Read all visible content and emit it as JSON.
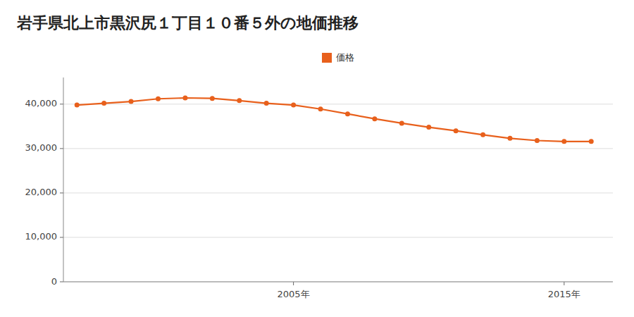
{
  "chart_data": {
    "type": "line",
    "title": "岩手県北上市黒沢尻１丁目１０番５外の地価推移",
    "x": [
      1997,
      1998,
      1999,
      2000,
      2001,
      2002,
      2003,
      2004,
      2005,
      2006,
      2007,
      2008,
      2009,
      2010,
      2011,
      2012,
      2013,
      2014,
      2015,
      2016
    ],
    "series": [
      {
        "name": "価格",
        "color": "#e8601c",
        "marker": "circle",
        "values": [
          39800,
          40200,
          40600,
          41200,
          41400,
          41300,
          40800,
          40200,
          39800,
          38900,
          37800,
          36700,
          35700,
          34800,
          34000,
          33100,
          32300,
          31800,
          31600,
          31600
        ]
      }
    ],
    "xlim": [
      1996.5,
      2016.8
    ],
    "xticks": [
      {
        "value": 2005,
        "label": "2005年"
      },
      {
        "value": 2015,
        "label": "2015年"
      }
    ],
    "ylim": [
      0,
      46000
    ],
    "yticks": [
      0,
      {
        "value": 10000,
        "label": "10,000"
      },
      {
        "value": 20000,
        "label": "20,000"
      },
      {
        "value": 30000,
        "label": "30,000"
      },
      {
        "value": 40000,
        "label": "40,000"
      }
    ],
    "grid": "y",
    "legend": "top"
  }
}
